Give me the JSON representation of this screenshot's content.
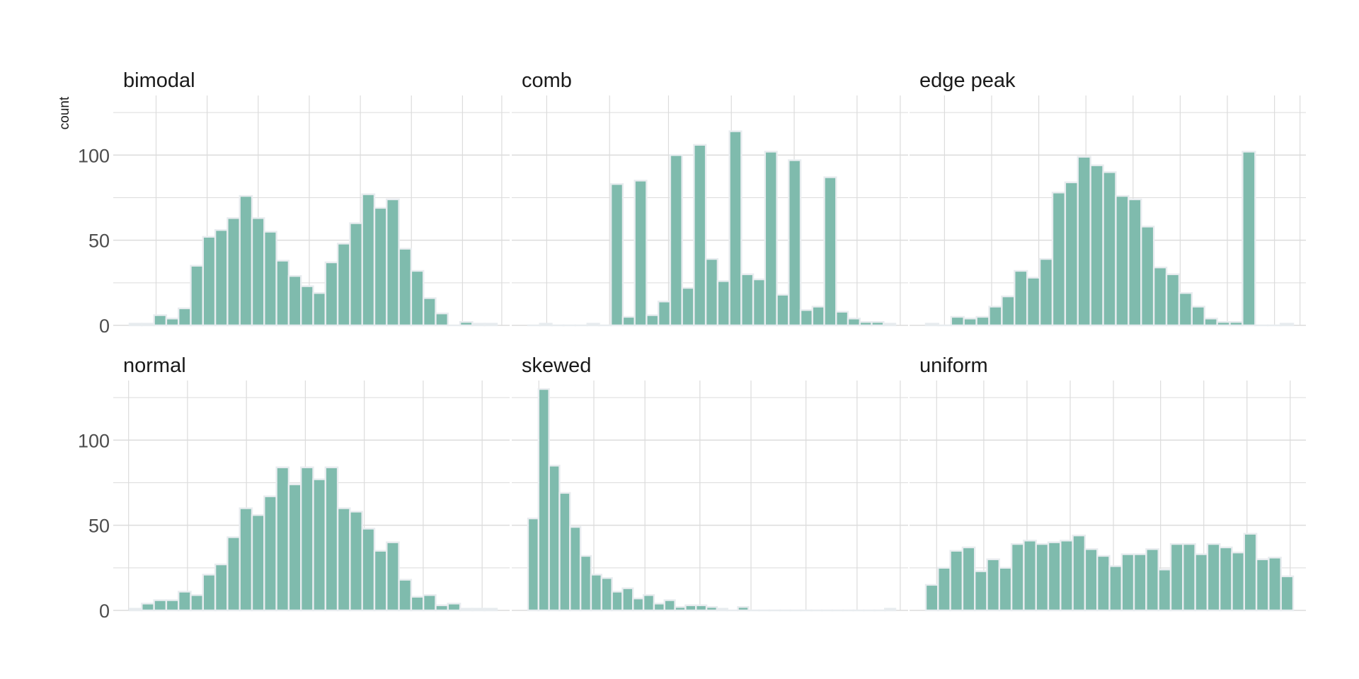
{
  "chart_data": {
    "type": "bar",
    "ylabel": "count",
    "ylim": [
      0,
      135
    ],
    "yticks": [
      0,
      50,
      100
    ],
    "bar_color": "#7fbbad",
    "bar_outline": "#e8ecef",
    "grid": true,
    "grid_color": "#dcdcdc",
    "panels": [
      {
        "name": "bimodal",
        "values": [
          1,
          1,
          6,
          4,
          10,
          35,
          52,
          56,
          63,
          76,
          63,
          55,
          38,
          29,
          23,
          19,
          37,
          48,
          60,
          77,
          69,
          74,
          45,
          32,
          16,
          7,
          0,
          2,
          1,
          1
        ]
      },
      {
        "name": "comb",
        "values": [
          0,
          1,
          0,
          0,
          0,
          1,
          0,
          83,
          5,
          85,
          6,
          14,
          100,
          22,
          106,
          39,
          26,
          114,
          30,
          27,
          102,
          18,
          97,
          9,
          11,
          87,
          8,
          4,
          2,
          2,
          1
        ]
      },
      {
        "name": "edge peak",
        "values": [
          1,
          0,
          5,
          4,
          5,
          11,
          17,
          32,
          28,
          39,
          78,
          84,
          99,
          94,
          90,
          76,
          74,
          58,
          34,
          30,
          19,
          11,
          4,
          2,
          2,
          102,
          0,
          0,
          1
        ]
      },
      {
        "name": "normal",
        "values": [
          1,
          4,
          6,
          6,
          11,
          9,
          21,
          27,
          43,
          60,
          56,
          67,
          84,
          74,
          84,
          77,
          84,
          60,
          58,
          48,
          35,
          40,
          18,
          8,
          9,
          3,
          4,
          1,
          1,
          1
        ]
      },
      {
        "name": "skewed",
        "values": [
          54,
          130,
          85,
          69,
          49,
          32,
          21,
          19,
          11,
          13,
          7,
          9,
          4,
          6,
          2,
          3,
          3,
          2,
          1,
          0,
          2,
          0,
          0,
          0,
          0,
          0,
          0,
          0,
          0,
          0,
          0,
          0,
          0,
          0,
          1
        ]
      },
      {
        "name": "uniform",
        "values": [
          15,
          25,
          35,
          37,
          23,
          30,
          25,
          39,
          41,
          39,
          40,
          41,
          44,
          36,
          32,
          26,
          33,
          33,
          36,
          24,
          39,
          39,
          33,
          39,
          37,
          34,
          45,
          30,
          31,
          20
        ]
      }
    ]
  }
}
